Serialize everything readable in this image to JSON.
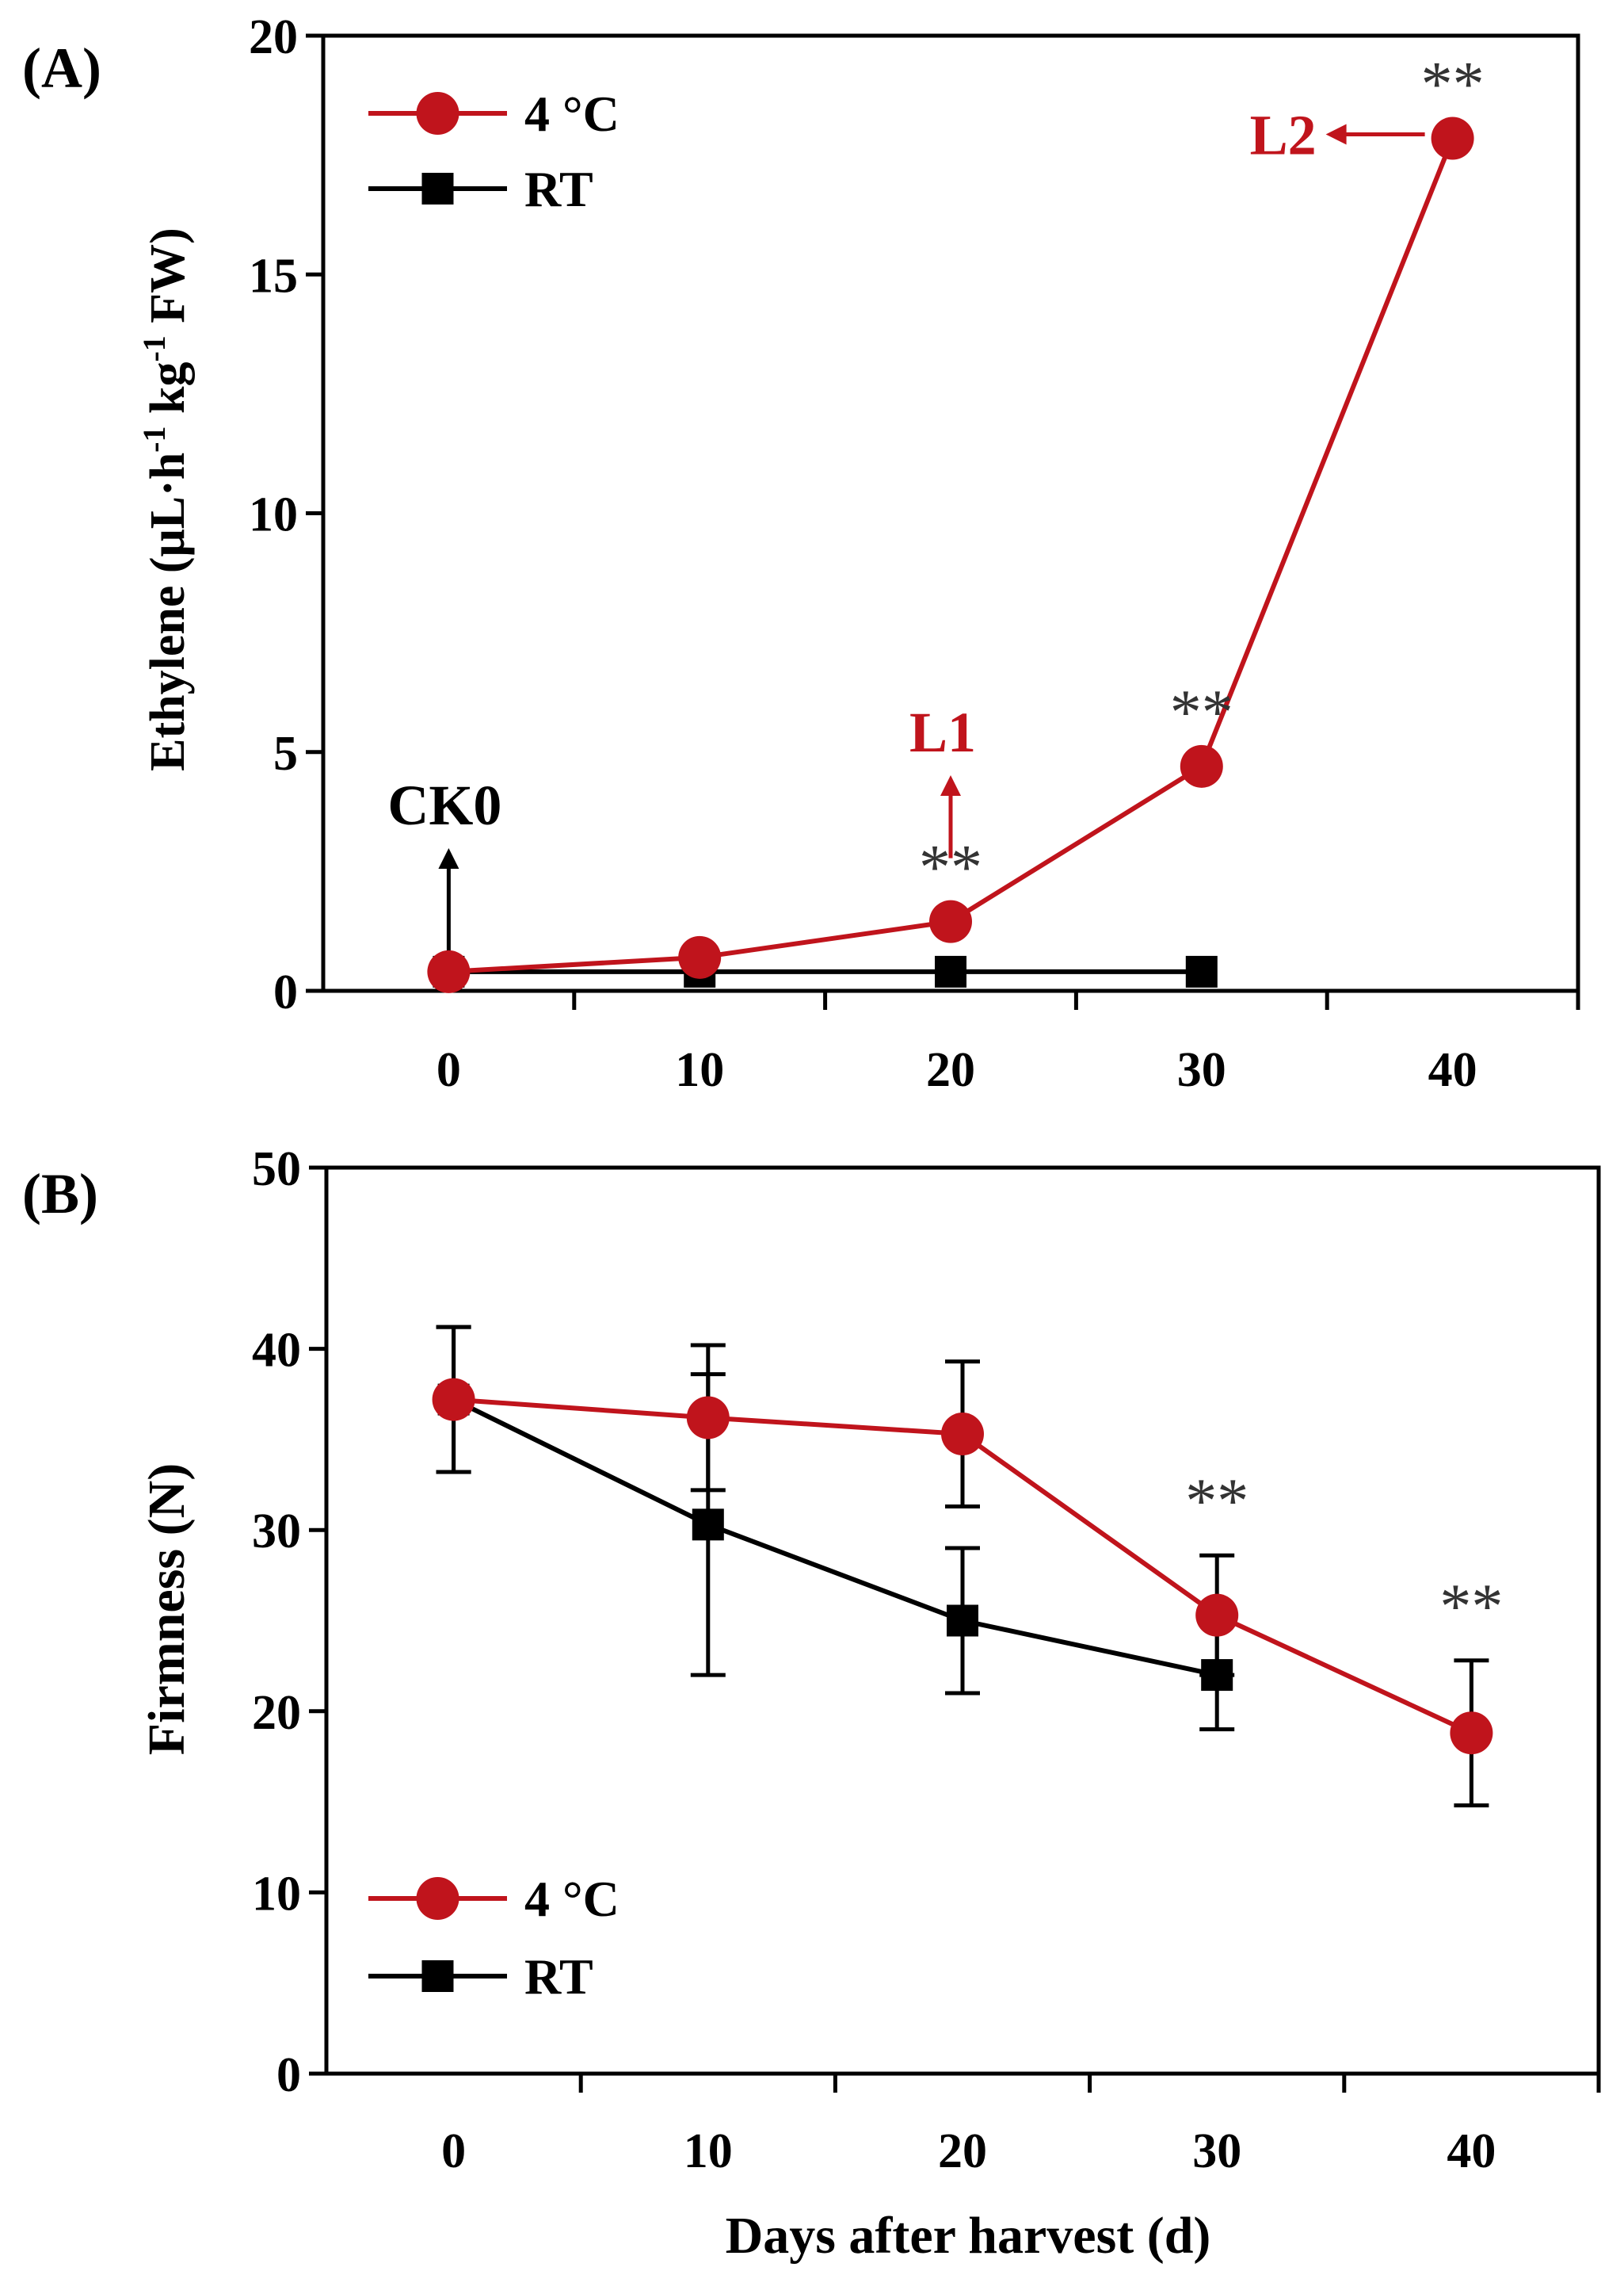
{
  "colors": {
    "warm": "#c0141c",
    "cold": "#000000",
    "star": "#333333"
  },
  "xlabel": "Days after harvest (d)",
  "chart_data": [
    {
      "panel_label": "(A)",
      "type": "line",
      "title": "",
      "xlabel": "",
      "ylabel": "Ethylene (μL·h-1 kg-1 FW)",
      "ylabel_parts": {
        "pre": "Ethylene (μL·h",
        "sup1": "-1",
        "mid": " kg",
        "sup2": "-1",
        "post": " FW)"
      },
      "x_ticks": [
        0,
        10,
        20,
        30,
        40
      ],
      "y_ticks": [
        0,
        5,
        10,
        15,
        20
      ],
      "xlim": [
        -5,
        45
      ],
      "ylim": [
        0,
        20
      ],
      "legend": "top-left",
      "series": [
        {
          "name": "4 °C",
          "marker": "circle",
          "color": "#c0141c",
          "x": [
            0,
            10,
            20,
            30,
            40
          ],
          "values": [
            0.4,
            0.7,
            1.45,
            4.7,
            17.85
          ]
        },
        {
          "name": "RT",
          "marker": "square",
          "color": "#000000",
          "x": [
            0,
            10,
            20,
            30
          ],
          "values": [
            0.4,
            0.4,
            0.4,
            0.4
          ]
        }
      ],
      "significance": [
        {
          "x": 20,
          "y": 1.45,
          "text": "**"
        },
        {
          "x": 30,
          "y": 4.7,
          "text": "**"
        },
        {
          "x": 40,
          "y": 17.85,
          "text": "**"
        }
      ],
      "annotations": [
        {
          "text": "CK0",
          "x": 0,
          "y": 0.4,
          "arrow": "up",
          "color": "#000000"
        },
        {
          "text": "L1",
          "x": 20,
          "y": 1.45,
          "arrow": "up",
          "color": "#c0141c"
        },
        {
          "text": "L2",
          "x": 40,
          "y": 17.85,
          "arrow": "left",
          "color": "#c0141c"
        }
      ]
    },
    {
      "panel_label": "(B)",
      "type": "line",
      "title": "",
      "xlabel": "Days after harvest (d)",
      "ylabel": "Firmness (N)",
      "x_ticks": [
        0,
        10,
        20,
        30,
        40
      ],
      "y_ticks": [
        0,
        10,
        20,
        30,
        40,
        50
      ],
      "xlim": [
        -5,
        45
      ],
      "ylim": [
        0,
        50
      ],
      "legend": "bottom-left",
      "series": [
        {
          "name": "4 °C",
          "marker": "circle",
          "color": "#c0141c",
          "x": [
            0,
            10,
            20,
            30,
            40
          ],
          "values": [
            37.2,
            36.2,
            35.3,
            25.3,
            18.8
          ],
          "errors": [
            4.0,
            4.0,
            4.0,
            3.3,
            4.0
          ]
        },
        {
          "name": "RT",
          "marker": "square",
          "color": "#000000",
          "x": [
            0,
            10,
            20,
            30
          ],
          "values": [
            37.2,
            30.3,
            25.0,
            22.0
          ],
          "errors": [
            4.0,
            8.3,
            4.0,
            3.0
          ]
        }
      ],
      "significance": [
        {
          "x": 30,
          "y": 28.6,
          "text": "**"
        },
        {
          "x": 40,
          "y": 22.8,
          "text": "**"
        }
      ]
    }
  ]
}
